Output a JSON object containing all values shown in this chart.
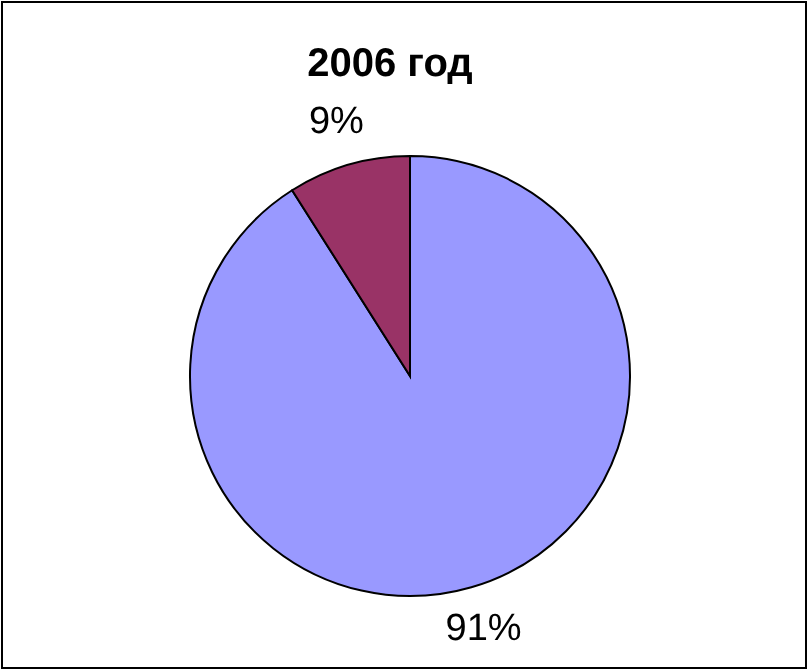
{
  "chart_data": {
    "type": "pie",
    "title": "2006 год",
    "categories": [
      null,
      null
    ],
    "values": [
      91,
      9
    ],
    "colors": [
      "#9999ff",
      "#993366"
    ],
    "value_labels": [
      "91%",
      "9%"
    ]
  }
}
